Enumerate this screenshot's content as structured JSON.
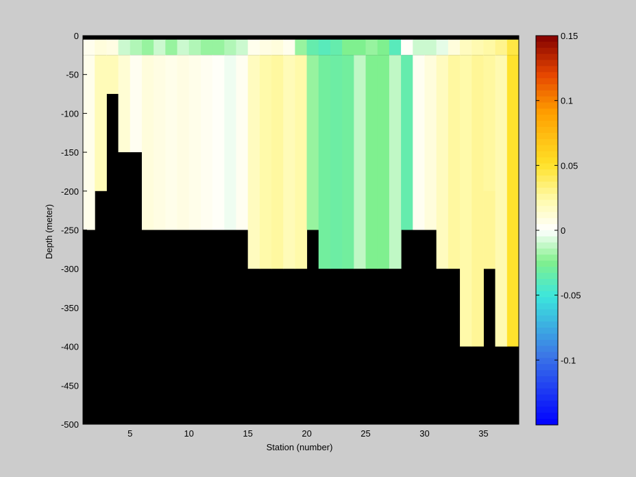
{
  "chart_data": {
    "type": "heatmap",
    "title": "",
    "xlabel": "Station (number)",
    "ylabel": "Depth (meter)",
    "xlim": [
      1,
      38
    ],
    "ylim": [
      -500,
      0
    ],
    "x_ticks": [
      5,
      10,
      15,
      20,
      25,
      30,
      35
    ],
    "y_ticks": [
      0,
      -50,
      -100,
      -150,
      -200,
      -250,
      -300,
      -350,
      -400,
      -450,
      -500
    ],
    "depth_bin_m": 50,
    "stations": [
      1,
      2,
      3,
      4,
      5,
      6,
      7,
      8,
      9,
      10,
      11,
      12,
      13,
      14,
      15,
      16,
      17,
      18,
      19,
      20,
      21,
      22,
      23,
      24,
      25,
      26,
      27,
      28,
      29,
      30,
      31,
      32,
      33,
      34,
      35,
      36,
      37
    ],
    "max_depth_m": [
      250,
      200,
      75,
      150,
      150,
      250,
      250,
      250,
      250,
      250,
      250,
      250,
      250,
      250,
      300,
      300,
      300,
      300,
      300,
      250,
      300,
      300,
      300,
      300,
      300,
      300,
      300,
      250,
      250,
      250,
      300,
      300,
      400,
      400,
      300,
      400,
      400
    ],
    "surface_values": [
      0.005,
      0.01,
      0.008,
      -0.01,
      -0.015,
      -0.02,
      -0.01,
      -0.02,
      -0.01,
      -0.015,
      -0.02,
      -0.02,
      -0.015,
      -0.01,
      0.005,
      0.008,
      0.01,
      0.005,
      -0.02,
      -0.035,
      -0.04,
      -0.035,
      -0.025,
      -0.025,
      -0.02,
      -0.025,
      -0.04,
      0.002,
      -0.01,
      -0.01,
      -0.005,
      0.01,
      0.018,
      0.022,
      0.025,
      0.03,
      0.045
    ],
    "values": [
      0.006,
      0.02,
      0.02,
      0.012,
      0.004,
      0.01,
      0.008,
      0.006,
      0.008,
      0.006,
      0.004,
      0.002,
      -0.003,
      0.004,
      0.018,
      0.024,
      0.026,
      0.02,
      0.024,
      -0.02,
      -0.03,
      -0.032,
      -0.03,
      -0.012,
      -0.025,
      -0.025,
      -0.012,
      -0.035,
      0.004,
      0.01,
      0.018,
      0.026,
      0.024,
      0.028,
      0.026,
      0.022,
      0.05
    ],
    "deep_values": {
      "35": [
        0.028,
        0.028
      ],
      "36": [
        0.022,
        0.022
      ],
      "38": [
        0.07,
        0.07
      ]
    },
    "colorbar": {
      "range": [
        -0.15,
        0.15
      ],
      "ticks": [
        "0.15",
        "0.1",
        "0.05",
        "0",
        "-0.05",
        "-0.1"
      ],
      "tick_values": [
        0.15,
        0.1,
        0.05,
        0,
        -0.05,
        -0.1
      ]
    },
    "mask_color": "#000000",
    "background_color": "#cccccc"
  }
}
